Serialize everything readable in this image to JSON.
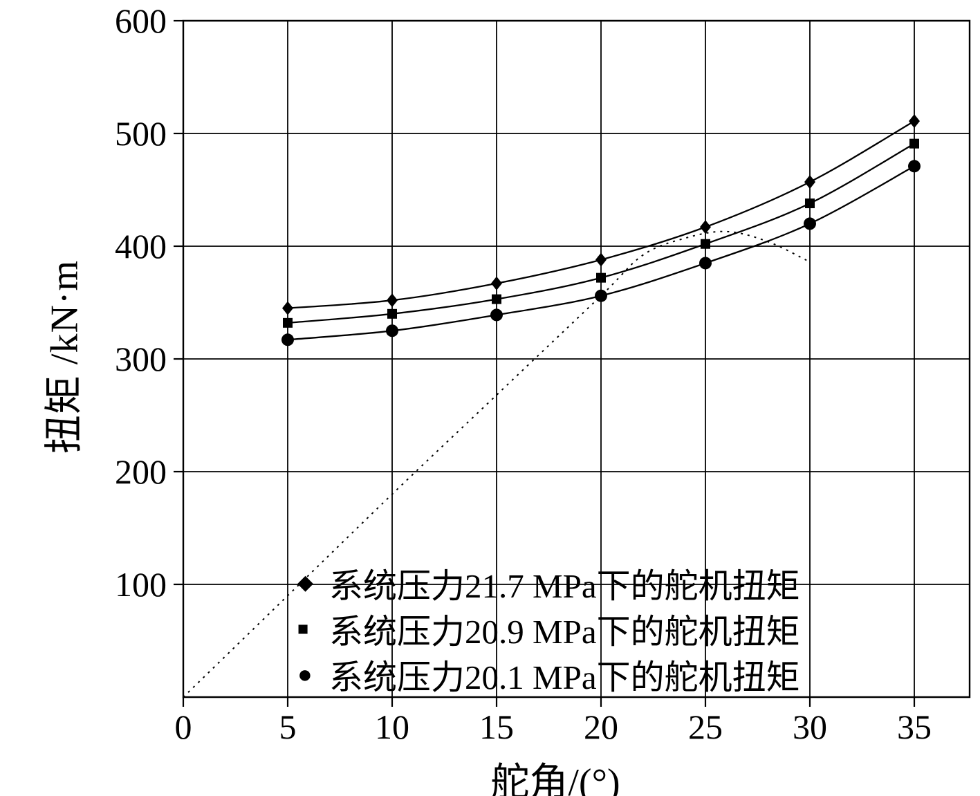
{
  "figure": {
    "background": "#ffffff",
    "line_color": "#000000"
  },
  "chart_data": {
    "type": "line",
    "title": "",
    "xlabel": "舵角/(°)",
    "ylabel": "扭矩 /kN·m",
    "xlim": [
      0,
      37.5
    ],
    "ylim": [
      0,
      600
    ],
    "x_ticks": [
      0,
      5,
      10,
      15,
      20,
      25,
      30,
      35
    ],
    "y_ticks": [
      100,
      200,
      300,
      400,
      500,
      600
    ],
    "grid": true,
    "legend_position": "inside-bottom-center",
    "x": [
      5,
      10,
      15,
      20,
      25,
      30,
      35
    ],
    "series": [
      {
        "name": "系统压力21.7 MPa下的舵机扭矩",
        "marker": "diamond",
        "values": [
          345,
          352,
          367,
          388,
          417,
          457,
          511
        ]
      },
      {
        "name": "系统压力20.9 MPa下的舵机扭矩",
        "marker": "square",
        "values": [
          332,
          340,
          353,
          372,
          402,
          438,
          491
        ]
      },
      {
        "name": "系统压力20.1 MPa下的舵机扭矩",
        "marker": "circle",
        "values": [
          317,
          325,
          339,
          356,
          385,
          420,
          471
        ]
      }
    ],
    "reference_line": {
      "style": "dotted",
      "points": [
        [
          0,
          0
        ],
        [
          5,
          90
        ],
        [
          10,
          180
        ],
        [
          15,
          268
        ],
        [
          20,
          356
        ],
        [
          22,
          392
        ],
        [
          24,
          407
        ],
        [
          26,
          413
        ],
        [
          28,
          404
        ],
        [
          30,
          386
        ]
      ]
    }
  }
}
